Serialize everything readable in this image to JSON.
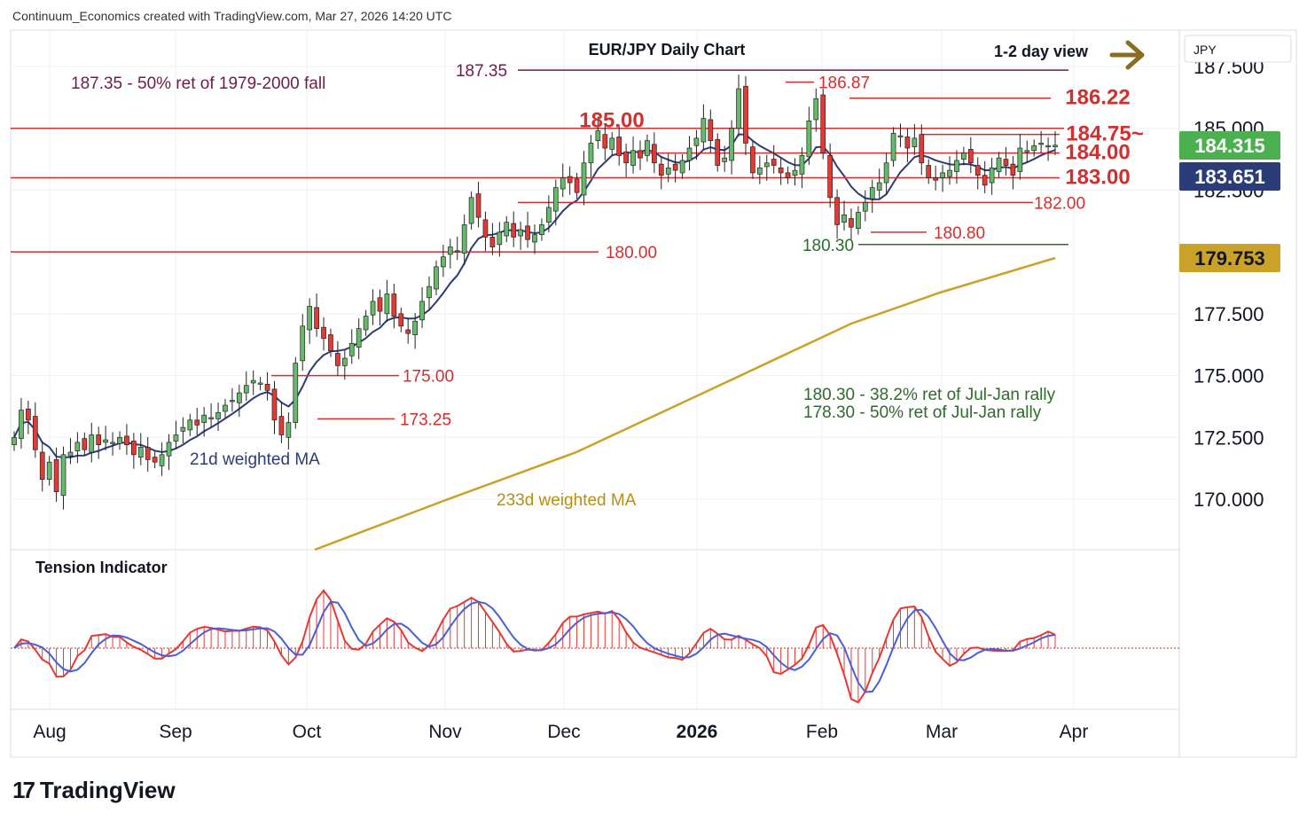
{
  "header": {
    "credit": "Continuum_Economics created with TradingView.com, Mar 27, 2026 14:20 UTC"
  },
  "footer": {
    "logo_text": "TradingView",
    "logo_mark": "17"
  },
  "chart_data": {
    "type": "candlestick",
    "title": "EUR/JPY Daily Chart",
    "subtitle": "1-2 day view",
    "currency": "JPY",
    "y_ticks": [
      "187.500",
      "185.000",
      "182.500",
      "177.500",
      "175.000",
      "172.500",
      "170.000"
    ],
    "x_ticks": [
      "Aug",
      "Sep",
      "Oct",
      "Nov",
      "Dec",
      "2026",
      "Feb",
      "Mar",
      "Apr"
    ],
    "ylim": [
      168.0,
      188.0
    ],
    "price_badges": [
      {
        "label": "184.315",
        "color": "#4caf50",
        "value": 184.315
      },
      {
        "label": "183.651",
        "color": "#2a3d78",
        "value": 183.651
      },
      {
        "label": "179.753",
        "color": "#c9a227",
        "value": 179.753
      }
    ],
    "levels": [
      {
        "label": "187.35",
        "value": 187.35,
        "color": "#6e1b4d"
      },
      {
        "label": "186.87",
        "value": 186.87,
        "color": "#d32f2f"
      },
      {
        "label": "186.22",
        "value": 186.22,
        "color": "#d32f2f"
      },
      {
        "label": "185.00",
        "value": 185.0,
        "color": "#d32f2f"
      },
      {
        "label": "184.75~",
        "value": 184.75,
        "color": "#d32f2f"
      },
      {
        "label": "184.00",
        "value": 184.0,
        "color": "#d32f2f"
      },
      {
        "label": "183.00",
        "value": 183.0,
        "color": "#d32f2f"
      },
      {
        "label": "182.00",
        "value": 182.0,
        "color": "#d32f2f"
      },
      {
        "label": "180.80",
        "value": 180.8,
        "color": "#d32f2f"
      },
      {
        "label": "180.30",
        "value": 180.3,
        "color": "#2e6b2e"
      },
      {
        "label": "180.00",
        "value": 180.0,
        "color": "#d32f2f"
      },
      {
        "label": "175.00",
        "value": 175.0,
        "color": "#d32f2f"
      },
      {
        "label": "173.25",
        "value": 173.25,
        "color": "#d32f2f"
      }
    ],
    "annotations": [
      {
        "text": "187.35 - 50% ret of 1979-2000 fall",
        "color": "#6e1b4d"
      },
      {
        "text": "180.30 - 38.2% ret of Jul-Jan rally",
        "color": "#2e6b2e"
      },
      {
        "text": "178.30 - 50% ret of Jul-Jan rally",
        "color": "#2e6b2e"
      },
      {
        "text": "21d weighted MA",
        "color": "#2a3d78"
      },
      {
        "text": "233d weighted MA",
        "color": "#b8900f"
      }
    ],
    "indicator_title": "Tension Indicator",
    "series": [
      {
        "name": "EUR/JPY",
        "ohlc_close": [
          172.5,
          173.6,
          173.2,
          172.0,
          170.8,
          171.5,
          170.3,
          171.8,
          171.9,
          172.3,
          172.0,
          172.6,
          172.2,
          172.4,
          172.3,
          172.5,
          172.2,
          171.8,
          172.1,
          171.6,
          171.5,
          171.8,
          172.3,
          172.6,
          172.9,
          173.2,
          173.0,
          173.4,
          173.3,
          173.5,
          173.8,
          174.0,
          174.3,
          174.6,
          174.8,
          174.7,
          174.4,
          173.2,
          172.6,
          173.1,
          175.5,
          177.0,
          177.8,
          176.9,
          176.5,
          176.0,
          175.4,
          175.7,
          176.3,
          176.9,
          177.4,
          178.0,
          177.6,
          178.3,
          177.4,
          177.0,
          176.7,
          177.2,
          178.0,
          178.6,
          179.4,
          179.8,
          180.2,
          180.0,
          181.1,
          182.2,
          181.4,
          180.6,
          180.2,
          180.8,
          181.2,
          180.6,
          180.9,
          180.5,
          180.7,
          181.1,
          181.8,
          182.6,
          183.0,
          182.8,
          182.4,
          183.6,
          184.4,
          184.9,
          184.2,
          184.6,
          183.9,
          183.6,
          184.1,
          183.8,
          184.5,
          183.6,
          183.1,
          183.4,
          183.3,
          183.7,
          184.2,
          184.6,
          185.4,
          184.5,
          183.5,
          183.8,
          185.0,
          186.6,
          184.4,
          183.2,
          183.4,
          183.6,
          183.5,
          183.2,
          183.0,
          183.3,
          183.9,
          185.3,
          186.2,
          184.0,
          182.2,
          181.1,
          181.5,
          181.0,
          181.6,
          182.0,
          182.6,
          182.8,
          183.6,
          184.8,
          184.7,
          184.2,
          184.6,
          183.6,
          183.0,
          182.9,
          183.2,
          183.3,
          183.7,
          184.0,
          183.6,
          183.1,
          182.7,
          183.4,
          183.8,
          183.5,
          183.1,
          184.2,
          184.1,
          184.3,
          184.4,
          184.3,
          184.315
        ]
      }
    ]
  }
}
